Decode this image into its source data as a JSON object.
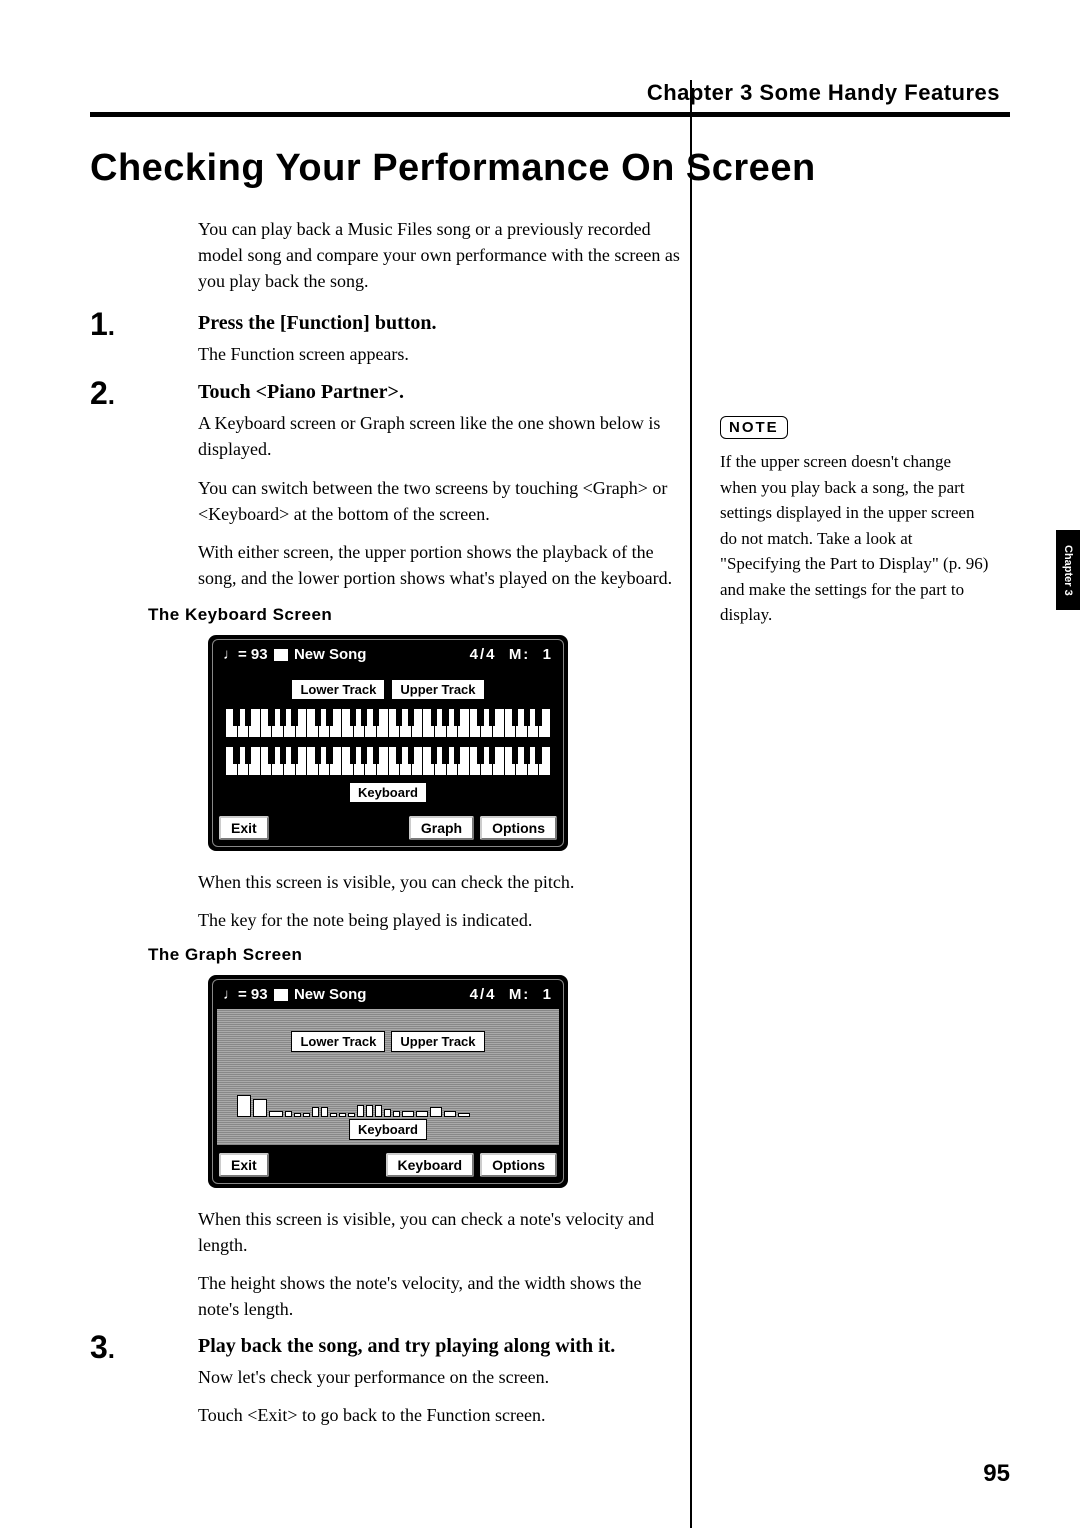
{
  "header": {
    "chapter": "Chapter 3 Some Handy Features"
  },
  "title": "Checking Your Performance On Screen",
  "intro": "You can play back a Music Files song or a previously recorded model song and compare your own performance with the screen as you play back the song.",
  "steps": {
    "s1": {
      "num": "1",
      "title": "Press the [Function] button.",
      "body": "The Function screen appears."
    },
    "s2": {
      "num": "2",
      "title": "Touch <Piano Partner>.",
      "body1": "A Keyboard screen or Graph screen like the one shown below is displayed.",
      "body2": "You can switch between the two screens by touching <Graph> or <Keyboard> at the bottom of the screen.",
      "body3": "With either screen, the upper portion shows the playback of the song, and the lower portion shows what's played on the keyboard."
    },
    "s3": {
      "num": "3",
      "title": "Play back the song, and try playing along with it.",
      "body1": "Now let's check your performance on the screen.",
      "body2": "Touch <Exit> to go back to the Function screen."
    }
  },
  "kb_section": {
    "heading": "The Keyboard Screen",
    "after1": "When this screen is visible, you can check the pitch.",
    "after2": "The key for the note being played is indicated."
  },
  "graph_section": {
    "heading": "The Graph Screen",
    "after1": "When this screen is visible, you can check a note's velocity and length.",
    "after2": "The height shows the note's velocity, and the width shows the note's length."
  },
  "lcd": {
    "tempo": "♩= 93",
    "song": "New Song",
    "timesig": "4/4",
    "meas": "M:",
    "measval": "1",
    "lower": "Lower Track",
    "upper": "Upper Track",
    "keyboard": "Keyboard",
    "exit": "Exit",
    "graph": "Graph",
    "options": "Options",
    "keyboard_btn": "Keyboard"
  },
  "graph_bars": [
    22,
    18,
    6,
    6,
    4,
    4,
    10,
    10,
    4,
    4,
    4,
    12,
    12,
    12,
    8,
    6,
    6,
    6,
    10,
    6,
    4
  ],
  "sidebar": {
    "note_label": "NOTE",
    "note_text": "If the upper screen doesn't change when you play back a song, the part settings displayed in the upper screen do not match. Take a look at \"Specifying the Part to Display\" (p. 96) and make the settings for the part to display."
  },
  "sidetab": "Chapter 3",
  "pagenum": "95"
}
